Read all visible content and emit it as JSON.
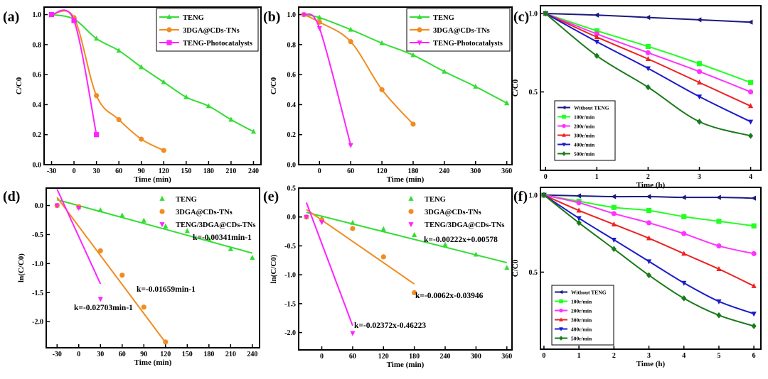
{
  "figure": {
    "panels": [
      {
        "id": "a",
        "label": "(a)"
      },
      {
        "id": "b",
        "label": "(b)"
      },
      {
        "id": "c",
        "label": "(c)"
      },
      {
        "id": "d",
        "label": "(d)"
      },
      {
        "id": "e",
        "label": "(e)"
      },
      {
        "id": "f",
        "label": "(f)"
      }
    ]
  },
  "colors": {
    "green": "#33dd33",
    "orange": "#f08c22",
    "magenta": "#ff22ff",
    "navy": "#1a1a80",
    "lime": "#22ff22",
    "pink": "#ff33ff",
    "red": "#ee2222",
    "blue": "#1a1acc",
    "darkgreen": "#1a7a1a"
  },
  "chart_data": [
    {
      "panel": "(a)",
      "type": "line",
      "xlabel": "Time (min)",
      "ylabel": "C/C0",
      "xlim": [
        -40,
        250
      ],
      "ylim": [
        0,
        1.05
      ],
      "xticks": [
        -30,
        0,
        30,
        60,
        90,
        120,
        150,
        180,
        210,
        240
      ],
      "yticks": [
        0.0,
        0.2,
        0.4,
        0.6,
        0.8,
        1.0
      ],
      "legend_position": "top-right",
      "series": [
        {
          "name": "TENG",
          "color": "#33dd33",
          "marker": "triangle",
          "x": [
            -30,
            0,
            30,
            60,
            90,
            120,
            150,
            180,
            210,
            240
          ],
          "y": [
            1.0,
            0.97,
            0.84,
            0.76,
            0.65,
            0.55,
            0.45,
            0.39,
            0.3,
            0.22
          ]
        },
        {
          "name": "3DGA@CDs-TNs",
          "color": "#f08c22",
          "marker": "circle",
          "x": [
            -30,
            0,
            30,
            60,
            90,
            120
          ],
          "y": [
            1.0,
            0.98,
            0.46,
            0.3,
            0.17,
            0.095
          ]
        },
        {
          "name": "TENG-Photocatalysts",
          "color": "#ff22ff",
          "marker": "square",
          "x": [
            -30,
            0,
            30
          ],
          "y": [
            1.0,
            0.96,
            0.2
          ]
        }
      ]
    },
    {
      "panel": "(b)",
      "type": "line",
      "xlabel": "Time (min)",
      "ylabel": "C/C0",
      "xlim": [
        -40,
        370
      ],
      "ylim": [
        0,
        1.05
      ],
      "xticks": [
        0,
        60,
        120,
        180,
        240,
        300,
        360
      ],
      "yticks": [
        0.0,
        0.2,
        0.4,
        0.6,
        0.8,
        1.0
      ],
      "legend_position": "top-right",
      "series": [
        {
          "name": "TENG",
          "color": "#33dd33",
          "marker": "triangle",
          "x": [
            -30,
            0,
            60,
            120,
            180,
            240,
            300,
            360
          ],
          "y": [
            1.0,
            0.98,
            0.9,
            0.81,
            0.73,
            0.62,
            0.52,
            0.41
          ]
        },
        {
          "name": "3DGA@CDs-TNs",
          "color": "#f08c22",
          "marker": "circle",
          "x": [
            -30,
            0,
            60,
            120,
            180
          ],
          "y": [
            1.0,
            0.95,
            0.82,
            0.5,
            0.27
          ]
        },
        {
          "name": "TENG-Photocatalysts",
          "color": "#ff22ff",
          "marker": "triangle-down",
          "x": [
            -30,
            0,
            60
          ],
          "y": [
            1.0,
            0.91,
            0.13
          ]
        }
      ]
    },
    {
      "panel": "(c)",
      "type": "line",
      "xlabel": "Time (h)",
      "ylabel": "C/C0",
      "xlim": [
        -0.1,
        4.2
      ],
      "ylim": [
        0.0,
        1.05
      ],
      "xticks": [
        0,
        1,
        2,
        3,
        4
      ],
      "yticks": [
        0.5,
        1.0
      ],
      "legend_position": "bottom-left",
      "series": [
        {
          "name": "Without TENG",
          "color": "#1a1a80",
          "marker": "triangle-left",
          "x": [
            0,
            1,
            2,
            3,
            4
          ],
          "y": [
            1.0,
            0.99,
            0.975,
            0.96,
            0.945
          ]
        },
        {
          "name": "100r/min",
          "color": "#22ff22",
          "marker": "square",
          "x": [
            0,
            1,
            2,
            3,
            4
          ],
          "y": [
            1.0,
            0.89,
            0.79,
            0.68,
            0.56
          ]
        },
        {
          "name": "200r/min",
          "color": "#ff33ff",
          "marker": "circle",
          "x": [
            0,
            1,
            2,
            3,
            4
          ],
          "y": [
            1.0,
            0.87,
            0.75,
            0.63,
            0.5
          ]
        },
        {
          "name": "300r/min",
          "color": "#ee2222",
          "marker": "triangle",
          "x": [
            0,
            1,
            2,
            3,
            4
          ],
          "y": [
            1.0,
            0.85,
            0.71,
            0.56,
            0.41
          ]
        },
        {
          "name": "400r/min",
          "color": "#1a1acc",
          "marker": "triangle-down",
          "x": [
            0,
            1,
            2,
            3,
            4
          ],
          "y": [
            1.0,
            0.82,
            0.65,
            0.47,
            0.31
          ]
        },
        {
          "name": "500r/min",
          "color": "#1a7a1a",
          "marker": "diamond",
          "x": [
            0,
            1,
            2,
            3,
            4
          ],
          "y": [
            1.0,
            0.73,
            0.53,
            0.31,
            0.22
          ]
        }
      ]
    },
    {
      "panel": "(d)",
      "type": "scatter",
      "xlabel": "Time (min)",
      "ylabel": "ln(C/C0)",
      "xlim": [
        -45,
        250
      ],
      "ylim": [
        -2.45,
        0.3
      ],
      "xticks": [
        -30,
        0,
        30,
        60,
        90,
        120,
        150,
        180,
        210,
        240
      ],
      "yticks": [
        0.0,
        -0.5,
        -1.0,
        -1.5,
        -2.0
      ],
      "legend_position": "top-right",
      "series": [
        {
          "name": "TENG",
          "color": "#33dd33",
          "marker": "triangle",
          "x": [
            -30,
            0,
            30,
            60,
            90,
            120,
            150,
            180,
            210,
            240
          ],
          "y": [
            0.0,
            -0.03,
            -0.08,
            -0.17,
            -0.26,
            -0.36,
            -0.44,
            -0.58,
            -0.75,
            -0.9
          ],
          "fit": [
            [
              -30,
              0.1
            ],
            [
              240,
              -0.82
            ]
          ]
        },
        {
          "name": "3DGA@CDs-TNs",
          "color": "#f08c22",
          "marker": "circle",
          "x": [
            -30,
            0,
            30,
            60,
            90,
            120
          ],
          "y": [
            0.0,
            -0.02,
            -0.78,
            -1.2,
            -1.75,
            -2.35
          ],
          "fit": [
            [
              -30,
              0.14
            ],
            [
              120,
              -2.36
            ]
          ]
        },
        {
          "name": "TENG/3DGA@CDs-TNs",
          "color": "#ff22ff",
          "marker": "triangle-down",
          "x": [
            -30,
            0,
            30
          ],
          "y": [
            0.0,
            -0.04,
            -1.61
          ],
          "fit": [
            [
              -30,
              0.28
            ],
            [
              30,
              -1.35
            ]
          ]
        }
      ],
      "annotations": [
        "k=-0.00341min-1",
        "k=-0.01659min-1",
        "k=-0.02703min-1"
      ]
    },
    {
      "panel": "(e)",
      "type": "scatter",
      "xlabel": "Time (min)",
      "ylabel": "ln(C/C0)",
      "xlim": [
        -45,
        370
      ],
      "ylim": [
        -2.3,
        0.5
      ],
      "xticks": [
        0,
        60,
        120,
        180,
        240,
        300,
        360
      ],
      "yticks": [
        0.5,
        0.0,
        -0.5,
        -1.0,
        -1.5,
        -2.0
      ],
      "legend_position": "top-right",
      "series": [
        {
          "name": "TENG",
          "color": "#33dd33",
          "marker": "triangle",
          "x": [
            -30,
            0,
            60,
            120,
            180,
            240,
            300,
            360
          ],
          "y": [
            0.0,
            -0.02,
            -0.1,
            -0.21,
            -0.31,
            -0.48,
            -0.65,
            -0.88
          ],
          "fit": [
            [
              -30,
              0.08
            ],
            [
              360,
              -0.79
            ]
          ]
        },
        {
          "name": "3DGA@CDs-TNs",
          "color": "#f08c22",
          "marker": "circle",
          "x": [
            -30,
            0,
            60,
            120,
            180
          ],
          "y": [
            0.0,
            -0.05,
            -0.2,
            -0.69,
            -1.31
          ],
          "fit": [
            [
              -30,
              0.13
            ],
            [
              180,
              -1.16
            ]
          ]
        },
        {
          "name": "TENG/3DGA@CDs-TNs",
          "color": "#ff22ff",
          "marker": "triangle-down",
          "x": [
            -30,
            0,
            60
          ],
          "y": [
            0.0,
            -0.09,
            -2.01
          ],
          "fit": [
            [
              -30,
              0.25
            ],
            [
              60,
              -1.88
            ]
          ]
        }
      ],
      "annotations": [
        "k=-0.00222x+0.00578",
        "k=-0.0062x-0.03946",
        "k=-0.02372x-0.46223"
      ]
    },
    {
      "panel": "(f)",
      "type": "line",
      "xlabel": "Time (h)",
      "ylabel": "C/C0",
      "xlim": [
        -0.1,
        6.2
      ],
      "ylim": [
        0.0,
        1.05
      ],
      "xticks": [
        0,
        1,
        2,
        3,
        4,
        5,
        6
      ],
      "yticks": [
        0.5,
        1.0
      ],
      "legend_position": "bottom-left",
      "series": [
        {
          "name": "Without TENG",
          "color": "#1a1a80",
          "marker": "triangle-left",
          "x": [
            0,
            1,
            2,
            3,
            4,
            5,
            6
          ],
          "y": [
            1.0,
            0.995,
            0.99,
            0.99,
            0.985,
            0.985,
            0.98
          ]
        },
        {
          "name": "100r/min",
          "color": "#22ff22",
          "marker": "square",
          "x": [
            0,
            1,
            2,
            3,
            4,
            5,
            6
          ],
          "y": [
            1.0,
            0.96,
            0.92,
            0.9,
            0.86,
            0.83,
            0.8
          ]
        },
        {
          "name": "200r/min",
          "color": "#ff33ff",
          "marker": "circle",
          "x": [
            0,
            1,
            2,
            3,
            4,
            5,
            6
          ],
          "y": [
            1.0,
            0.95,
            0.88,
            0.82,
            0.75,
            0.67,
            0.62
          ]
        },
        {
          "name": "300r/min",
          "color": "#ee2222",
          "marker": "triangle",
          "x": [
            0,
            1,
            2,
            3,
            4,
            5,
            6
          ],
          "y": [
            1.0,
            0.9,
            0.81,
            0.72,
            0.62,
            0.52,
            0.41
          ]
        },
        {
          "name": "400r/min",
          "color": "#1a1acc",
          "marker": "triangle-down",
          "x": [
            0,
            1,
            2,
            3,
            4,
            5,
            6
          ],
          "y": [
            1.0,
            0.85,
            0.71,
            0.57,
            0.43,
            0.31,
            0.23
          ]
        },
        {
          "name": "500r/min",
          "color": "#1a7a1a",
          "marker": "diamond",
          "x": [
            0,
            1,
            2,
            3,
            4,
            5,
            6
          ],
          "y": [
            1.0,
            0.82,
            0.65,
            0.48,
            0.33,
            0.22,
            0.15
          ]
        }
      ]
    }
  ]
}
